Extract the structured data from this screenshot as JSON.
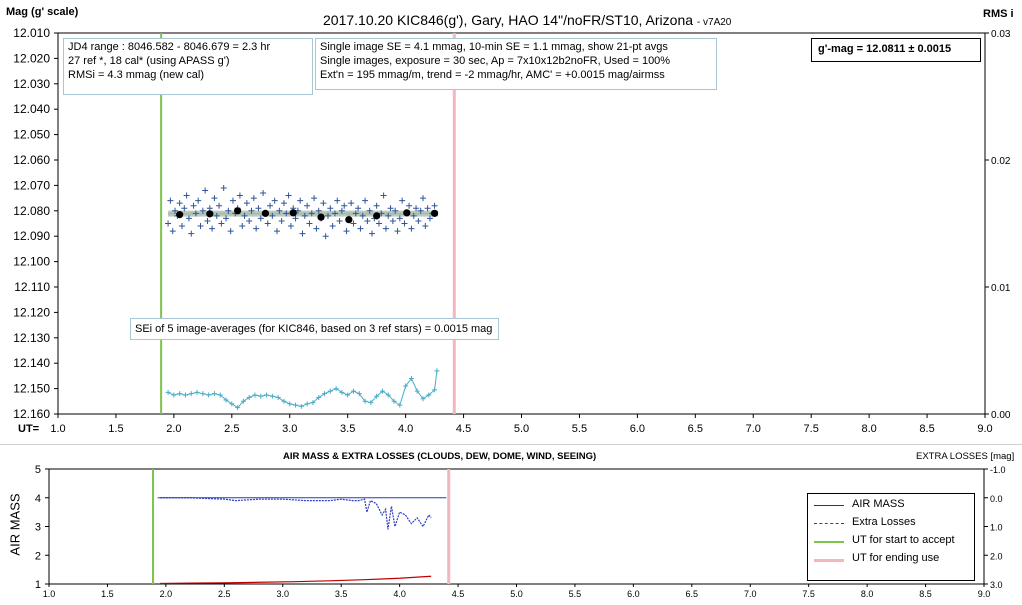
{
  "header": {
    "title": "2017.10.20  KIC846(g'),  Gary,  HAO  14\"/noFR/ST10,  Arizona",
    "version": "- v7A20",
    "left_axis_label": "Mag (g' scale)",
    "right_axis_label": "RMS i",
    "ut_label": "UT="
  },
  "info_boxes": {
    "range": [
      "JD4 range : 8046.582 - 8046.679 =  2.3  hr",
      "27 ref *, 18 cal* (using APASS g')",
      "RMSi = 4.3 mmag (new cal)"
    ],
    "stats": [
      "Single image SE = 4.1 mmag, 10-min SE = 1.1 mmag, show 21-pt avgs",
      "Single images, exposure = 30 sec, Ap = 7x10x12b2noFR, Used = 100%",
      "Ext'n = 195 mmag/m, trend =  -2 mmag/hr, AMC' = +0.0015 mag/airmss"
    ],
    "result": "g'-mag = 12.0811 ± 0.0015",
    "sei": "SEi of 5 image-averages (for KIC846, based on 3 ref stars) = 0.0015 mag"
  },
  "chart_data": [
    {
      "type": "scatter",
      "title": "2017.10.20  KIC846(g'),  Gary,  HAO  14\"/noFR/ST10,  Arizona",
      "xlabel": "UT=",
      "ylabel": "Mag (g' scale)",
      "y2label": "RMS i",
      "xlim": [
        1.0,
        9.0
      ],
      "x_ticks": [
        "1.0",
        "1.5",
        "2.0",
        "2.5",
        "3.0",
        "3.5",
        "4.0",
        "4.5",
        "5.0",
        "5.5",
        "6.0",
        "6.5",
        "7.0",
        "7.5",
        "8.0",
        "8.5",
        "9.0"
      ],
      "ylim": [
        12.16,
        12.01
      ],
      "y_ticks": [
        "12.010",
        "12.020",
        "12.030",
        "12.040",
        "12.050",
        "12.060",
        "12.070",
        "12.080",
        "12.090",
        "12.100",
        "12.110",
        "12.120",
        "12.130",
        "12.140",
        "12.150",
        "12.160"
      ],
      "y2lim": [
        0.0,
        0.03
      ],
      "y2_ticks": [
        "0.03",
        "0.02",
        "0.01",
        "0.00"
      ],
      "grid": false,
      "series": [
        {
          "kind": "single_images",
          "color": "#2f5597",
          "x": [
            1.95,
            1.97,
            1.99,
            2.01,
            2.03,
            2.05,
            2.07,
            2.09,
            2.11,
            2.13,
            2.15,
            2.17,
            2.19,
            2.21,
            2.23,
            2.25,
            2.27,
            2.29,
            2.31,
            2.33,
            2.35,
            2.37,
            2.39,
            2.41,
            2.43,
            2.45,
            2.47,
            2.49,
            2.51,
            2.53,
            2.55,
            2.57,
            2.59,
            2.61,
            2.63,
            2.65,
            2.67,
            2.69,
            2.71,
            2.73,
            2.75,
            2.77,
            2.79,
            2.81,
            2.83,
            2.85,
            2.87,
            2.89,
            2.91,
            2.93,
            2.95,
            2.97,
            2.99,
            3.01,
            3.03,
            3.05,
            3.07,
            3.09,
            3.11,
            3.13,
            3.15,
            3.17,
            3.19,
            3.21,
            3.23,
            3.25,
            3.27,
            3.29,
            3.31,
            3.33,
            3.35,
            3.37,
            3.39,
            3.41,
            3.43,
            3.45,
            3.47,
            3.49,
            3.51,
            3.53,
            3.55,
            3.57,
            3.59,
            3.61,
            3.63,
            3.65,
            3.67,
            3.69,
            3.71,
            3.73,
            3.75,
            3.77,
            3.79,
            3.81,
            3.83,
            3.85,
            3.87,
            3.89,
            3.91,
            3.93,
            3.95,
            3.97,
            3.99,
            4.01,
            4.03,
            4.05,
            4.07,
            4.09,
            4.11,
            4.13,
            4.15,
            4.17,
            4.19,
            4.21,
            4.23,
            4.25
          ],
          "y": [
            12.085,
            12.076,
            12.088,
            12.08,
            12.082,
            12.077,
            12.086,
            12.079,
            12.074,
            12.083,
            12.089,
            12.078,
            12.081,
            12.076,
            12.086,
            12.08,
            12.072,
            12.084,
            12.079,
            12.087,
            12.075,
            12.082,
            12.078,
            12.085,
            12.071,
            12.083,
            12.08,
            12.088,
            12.076,
            12.081,
            12.079,
            12.074,
            12.086,
            12.082,
            12.077,
            12.084,
            12.08,
            12.075,
            12.087,
            12.079,
            12.083,
            12.073,
            12.081,
            12.085,
            12.078,
            12.082,
            12.076,
            12.088,
            12.08,
            12.084,
            12.077,
            12.081,
            12.074,
            12.086,
            12.079,
            12.083,
            12.08,
            12.076,
            12.089,
            12.082,
            12.078,
            12.085,
            12.081,
            12.075,
            12.087,
            12.08,
            12.083,
            12.077,
            12.09,
            12.082,
            12.079,
            12.086,
            12.081,
            12.076,
            12.084,
            12.08,
            12.078,
            12.088,
            12.083,
            12.077,
            12.085,
            12.081,
            12.079,
            12.087,
            12.082,
            12.076,
            12.084,
            12.08,
            12.089,
            12.083,
            12.078,
            12.085,
            12.081,
            12.074,
            12.087,
            12.082,
            12.079,
            12.084,
            12.08,
            12.088,
            12.083,
            12.076,
            12.085,
            12.081,
            12.078,
            12.087,
            12.082,
            12.079,
            12.084,
            12.08,
            12.075,
            12.086,
            12.079,
            12.083,
            12.081,
            12.078
          ]
        },
        {
          "kind": "averages",
          "name": "21-pt avgs",
          "color": "#000000",
          "x": [
            2.05,
            2.31,
            2.55,
            2.79,
            3.03,
            3.27,
            3.51,
            3.75,
            4.01,
            4.25
          ],
          "y": [
            12.0815,
            12.0812,
            12.08,
            12.081,
            12.0808,
            12.0825,
            12.0835,
            12.082,
            12.0808,
            12.081
          ]
        },
        {
          "kind": "trend",
          "color": "#9dc3a8",
          "x": [
            1.95,
            4.28
          ],
          "y": [
            12.0811,
            12.0811
          ]
        },
        {
          "kind": "rms",
          "axis": "right",
          "color": "#4bacc6",
          "x": [
            1.95,
            2.0,
            2.05,
            2.1,
            2.15,
            2.2,
            2.25,
            2.3,
            2.35,
            2.4,
            2.45,
            2.5,
            2.55,
            2.6,
            2.65,
            2.7,
            2.75,
            2.8,
            2.85,
            2.9,
            2.95,
            3.0,
            3.05,
            3.1,
            3.15,
            3.2,
            3.25,
            3.3,
            3.35,
            3.4,
            3.45,
            3.5,
            3.55,
            3.6,
            3.65,
            3.7,
            3.75,
            3.8,
            3.85,
            3.9,
            3.95,
            4.0,
            4.05,
            4.1,
            4.15,
            4.2,
            4.25,
            4.27
          ],
          "y": [
            0.0017,
            0.0015,
            0.0016,
            0.0015,
            0.0016,
            0.0017,
            0.0016,
            0.0015,
            0.0016,
            0.0015,
            0.0011,
            0.0008,
            0.0005,
            0.001,
            0.0013,
            0.0015,
            0.0014,
            0.0015,
            0.0014,
            0.0013,
            0.001,
            0.0008,
            0.0007,
            0.0006,
            0.0008,
            0.0009,
            0.0013,
            0.0016,
            0.0018,
            0.002,
            0.0017,
            0.0015,
            0.0018,
            0.0016,
            0.001,
            0.0009,
            0.0014,
            0.0018,
            0.0015,
            0.001,
            0.0007,
            0.0022,
            0.0028,
            0.0018,
            0.0012,
            0.0015,
            0.0019,
            0.0034
          ]
        }
      ],
      "accept_start_ut": 1.89,
      "end_use_ut": 4.42
    },
    {
      "type": "line",
      "title": "AIR MASS & EXTRA LOSSES (CLOUDS, DEW, DOME, WIND, SEEING)",
      "ylabel": "AIR MASS",
      "y2label": "EXTRA LOSSES [mag]",
      "xlim": [
        1.0,
        9.0
      ],
      "x_ticks": [
        "1.0",
        "1.5",
        "2.0",
        "2.5",
        "3.0",
        "3.5",
        "4.0",
        "4.5",
        "5.0",
        "5.5",
        "6.0",
        "6.5",
        "7.0",
        "7.5",
        "8.0",
        "8.5",
        "9.0"
      ],
      "ylim": [
        1,
        5
      ],
      "y_ticks": [
        "5",
        "4",
        "3",
        "2",
        "1"
      ],
      "y2lim": [
        -1.0,
        3.0
      ],
      "y2_ticks": [
        "-1.0",
        "0.0",
        "1.0",
        "2.0",
        "3.0"
      ],
      "legend_position": "bottom-right",
      "series": [
        {
          "name": "AIR MASS",
          "color": "#c00000",
          "x": [
            1.95,
            2.2,
            2.5,
            2.8,
            3.1,
            3.4,
            3.7,
            4.0,
            4.27
          ],
          "y": [
            1.02,
            1.03,
            1.04,
            1.06,
            1.08,
            1.11,
            1.15,
            1.2,
            1.27
          ]
        },
        {
          "name": "Extra Losses",
          "color": "#2f3fbf",
          "axis": "right",
          "x": [
            1.95,
            2.2,
            2.5,
            2.6,
            2.8,
            3.0,
            3.2,
            3.4,
            3.5,
            3.6,
            3.65,
            3.7,
            3.72,
            3.75,
            3.8,
            3.85,
            3.88,
            3.9,
            3.93,
            3.96,
            4.0,
            4.05,
            4.1,
            4.15,
            4.2,
            4.25,
            4.27
          ],
          "y": [
            0.0,
            0.0,
            0.05,
            0.1,
            0.05,
            0.05,
            0.1,
            0.1,
            0.05,
            0.1,
            0.1,
            0.05,
            0.5,
            0.1,
            0.2,
            0.6,
            0.4,
            1.1,
            0.3,
            1.0,
            0.5,
            0.6,
            0.9,
            0.7,
            1.0,
            0.6,
            0.7
          ]
        },
        {
          "name": "UT for start to accept",
          "color": "#7fc34a",
          "x": [
            1.89,
            1.89
          ],
          "y": [
            1,
            5
          ]
        },
        {
          "name": "UT for ending use",
          "color": "#f4b6bd",
          "x": [
            4.42,
            4.42
          ],
          "y": [
            1,
            5
          ]
        }
      ],
      "reference_line": {
        "axis": "right",
        "y": 0.0,
        "color": "#1f3fbf"
      }
    }
  ]
}
